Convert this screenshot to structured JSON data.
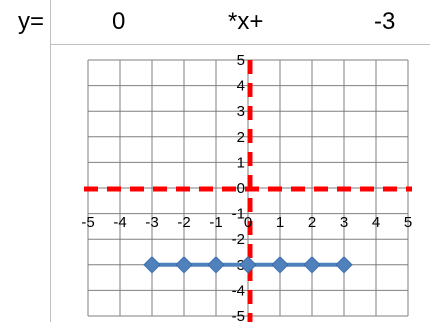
{
  "formula_row": {
    "lhs": "y=",
    "slope": "0",
    "op": "*x+",
    "intercept": "-3"
  },
  "chart_data": {
    "type": "scatter",
    "title": "",
    "xlabel": "",
    "ylabel": "",
    "xlim": [
      -5,
      5
    ],
    "ylim": [
      -5,
      5
    ],
    "grid": true,
    "x_ticks": [
      "-5",
      "-4",
      "-3",
      "-2",
      "-1",
      "0",
      "1",
      "2",
      "3",
      "4",
      "5"
    ],
    "y_ticks": [
      "5",
      "4",
      "3",
      "2",
      "1",
      "0",
      "-1",
      "-2",
      "-3",
      "-4",
      "-5"
    ],
    "series": [
      {
        "x": [
          -3,
          -2,
          -1,
          0,
          1,
          2,
          3
        ],
        "y": [
          -3,
          -3,
          -3,
          -3,
          -3,
          -3,
          -3
        ],
        "color": "#4f81bd",
        "marker": "diamond",
        "line": true
      }
    ],
    "axis_lines": {
      "color": "#ff0000",
      "style": "dashed"
    }
  }
}
